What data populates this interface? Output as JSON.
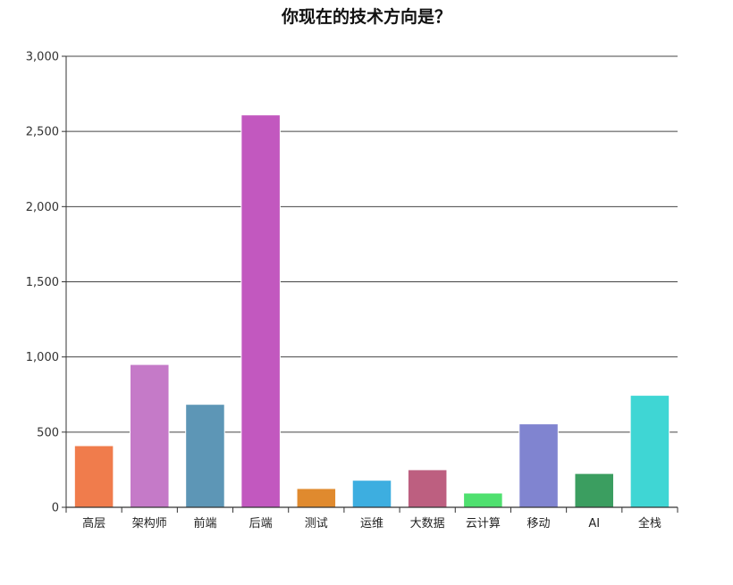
{
  "chart_data": {
    "type": "bar",
    "title": "你现在的技术方向是？",
    "categories": [
      "高层",
      "架构师",
      "前端",
      "后端",
      "测试",
      "运维",
      "大数据",
      "云计算",
      "移动",
      "AI",
      "全栈"
    ],
    "values": [
      410,
      950,
      685,
      2610,
      125,
      180,
      250,
      95,
      555,
      225,
      745
    ],
    "colors": [
      "#f07c4c",
      "#c57ac8",
      "#5d96b6",
      "#c258bf",
      "#e08a2e",
      "#3daee0",
      "#bd5f80",
      "#4fe06f",
      "#8084d0",
      "#3b9e60",
      "#3fd6d4"
    ],
    "ylim": [
      0,
      3000
    ],
    "yticks": [
      0,
      500,
      1000,
      1500,
      2000,
      2500,
      3000
    ],
    "ytick_labels": [
      "0",
      "500",
      "1,000",
      "1,500",
      "2,000",
      "2,500",
      "3,000"
    ],
    "grid": true,
    "xlabel": "",
    "ylabel": ""
  }
}
